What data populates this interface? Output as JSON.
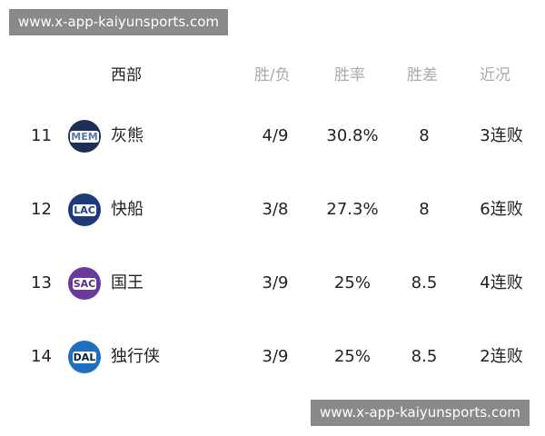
{
  "watermark_top": "www.x-app-kaiyunsports.com",
  "watermark_bottom": "www.x-app-kaiyunsports.com",
  "header": {
    "conference": "西部",
    "record": "胜/负",
    "pct": "胜率",
    "gb": "胜差",
    "streak": "近况"
  },
  "rows": [
    {
      "rank": "11",
      "abbr": "MEM",
      "team": "灰熊",
      "record": "4/9",
      "pct": "30.8%",
      "gb": "8",
      "streak": "3连败",
      "color": "#1d2e55",
      "text": "#5d76a9"
    },
    {
      "rank": "12",
      "abbr": "LAC",
      "team": "快船",
      "record": "3/8",
      "pct": "27.3%",
      "gb": "8",
      "streak": "6连败",
      "color": "#1d3a7a",
      "text": "#1d428a"
    },
    {
      "rank": "13",
      "abbr": "SAC",
      "team": "国王",
      "record": "3/9",
      "pct": "25%",
      "gb": "8.5",
      "streak": "4连败",
      "color": "#6a3a9a",
      "text": "#5a2d81"
    },
    {
      "rank": "14",
      "abbr": "DAL",
      "team": "独行侠",
      "record": "3/9",
      "pct": "25%",
      "gb": "8.5",
      "streak": "2连败",
      "color": "#1f6fc0",
      "text": "#0a2240"
    }
  ]
}
